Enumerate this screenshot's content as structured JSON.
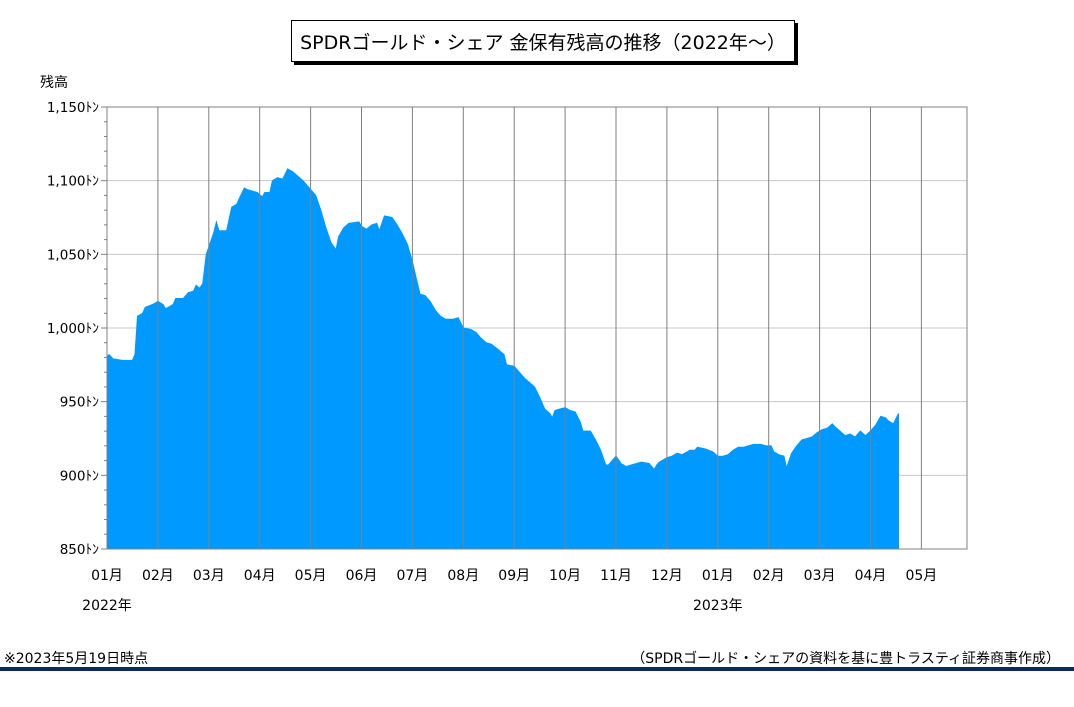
{
  "chart_data": {
    "type": "area",
    "title": "SPDRゴールド・シェア 金保有残高の推移（2022年～）",
    "ylabel": "残高",
    "y_unit": "ﾄﾝ",
    "ylim": [
      850,
      1150
    ],
    "y_ticks": [
      850,
      900,
      950,
      1000,
      1050,
      1100,
      1150
    ],
    "y_tick_labels": [
      "850ﾄﾝ",
      "900ﾄﾝ",
      "950ﾄﾝ",
      "1,000ﾄﾝ",
      "1,050ﾄﾝ",
      "1,100ﾄﾝ",
      "1,150ﾄﾝ"
    ],
    "x_tick_labels": [
      "01月",
      "02月",
      "03月",
      "04月",
      "05月",
      "06月",
      "07月",
      "08月",
      "09月",
      "10月",
      "11月",
      "12月",
      "01月",
      "02月",
      "03月",
      "04月",
      "05月"
    ],
    "year_labels": [
      {
        "label": "2022年",
        "at_month": 0
      },
      {
        "label": "2023年",
        "at_month": 12
      }
    ],
    "grid": true,
    "color": "#0099ff",
    "series": [
      {
        "points": [
          [
            0.0,
            980
          ],
          [
            0.04,
            982
          ],
          [
            0.12,
            979
          ],
          [
            0.3,
            978
          ],
          [
            0.5,
            978
          ],
          [
            0.55,
            982
          ],
          [
            0.6,
            1008
          ],
          [
            0.7,
            1010
          ],
          [
            0.75,
            1014
          ],
          [
            0.9,
            1016
          ],
          [
            1.0,
            1018
          ],
          [
            1.1,
            1016
          ],
          [
            1.15,
            1013
          ],
          [
            1.2,
            1014
          ],
          [
            1.3,
            1016
          ],
          [
            1.35,
            1020
          ],
          [
            1.5,
            1020
          ],
          [
            1.6,
            1024
          ],
          [
            1.7,
            1025
          ],
          [
            1.75,
            1029
          ],
          [
            1.82,
            1027
          ],
          [
            1.88,
            1030
          ],
          [
            1.95,
            1050
          ],
          [
            2.0,
            1055
          ],
          [
            2.1,
            1065
          ],
          [
            2.15,
            1072
          ],
          [
            2.2,
            1066
          ],
          [
            2.35,
            1066
          ],
          [
            2.45,
            1082
          ],
          [
            2.55,
            1084
          ],
          [
            2.6,
            1088
          ],
          [
            2.7,
            1095
          ],
          [
            2.75,
            1094
          ],
          [
            2.85,
            1093
          ],
          [
            2.95,
            1092
          ],
          [
            3.05,
            1089
          ],
          [
            3.1,
            1092
          ],
          [
            3.2,
            1092
          ],
          [
            3.25,
            1100
          ],
          [
            3.35,
            1102
          ],
          [
            3.45,
            1101
          ],
          [
            3.55,
            1108
          ],
          [
            3.65,
            1106
          ],
          [
            3.75,
            1103
          ],
          [
            3.85,
            1100
          ],
          [
            3.95,
            1096
          ],
          [
            4.1,
            1090
          ],
          [
            4.2,
            1080
          ],
          [
            4.3,
            1068
          ],
          [
            4.4,
            1058
          ],
          [
            4.5,
            1053
          ],
          [
            4.55,
            1062
          ],
          [
            4.65,
            1068
          ],
          [
            4.75,
            1071
          ],
          [
            4.95,
            1072
          ],
          [
            5.0,
            1069
          ],
          [
            5.1,
            1067
          ],
          [
            5.2,
            1070
          ],
          [
            5.3,
            1071
          ],
          [
            5.35,
            1066
          ],
          [
            5.45,
            1076
          ],
          [
            5.6,
            1075
          ],
          [
            5.7,
            1070
          ],
          [
            5.8,
            1064
          ],
          [
            5.9,
            1057
          ],
          [
            6.0,
            1045
          ],
          [
            6.15,
            1023
          ],
          [
            6.25,
            1022
          ],
          [
            6.35,
            1018
          ],
          [
            6.45,
            1012
          ],
          [
            6.55,
            1008
          ],
          [
            6.65,
            1006
          ],
          [
            6.8,
            1006
          ],
          [
            6.9,
            1007
          ],
          [
            7.0,
            1000
          ],
          [
            7.15,
            999
          ],
          [
            7.25,
            997
          ],
          [
            7.35,
            993
          ],
          [
            7.45,
            990
          ],
          [
            7.55,
            989
          ],
          [
            7.7,
            985
          ],
          [
            7.8,
            982
          ],
          [
            7.85,
            975
          ],
          [
            8.0,
            974
          ],
          [
            8.1,
            970
          ],
          [
            8.2,
            966
          ],
          [
            8.3,
            963
          ],
          [
            8.4,
            960
          ],
          [
            8.5,
            953
          ],
          [
            8.6,
            945
          ],
          [
            8.7,
            942
          ],
          [
            8.75,
            939
          ],
          [
            8.8,
            944
          ],
          [
            8.9,
            945
          ],
          [
            9.0,
            946
          ],
          [
            9.1,
            944
          ],
          [
            9.2,
            943
          ],
          [
            9.3,
            936
          ],
          [
            9.35,
            930
          ],
          [
            9.5,
            930
          ],
          [
            9.6,
            924
          ],
          [
            9.7,
            917
          ],
          [
            9.8,
            907
          ],
          [
            9.85,
            907
          ],
          [
            9.9,
            909
          ],
          [
            10.0,
            913
          ],
          [
            10.1,
            908
          ],
          [
            10.2,
            906
          ],
          [
            10.3,
            907
          ],
          [
            10.4,
            908
          ],
          [
            10.5,
            909
          ],
          [
            10.65,
            908
          ],
          [
            10.75,
            904
          ],
          [
            10.8,
            907
          ],
          [
            10.85,
            909
          ],
          [
            11.0,
            912
          ],
          [
            11.1,
            913
          ],
          [
            11.2,
            915
          ],
          [
            11.3,
            914
          ],
          [
            11.45,
            917
          ],
          [
            11.55,
            917
          ],
          [
            11.6,
            919
          ],
          [
            11.75,
            918
          ],
          [
            11.9,
            916
          ],
          [
            12.0,
            913
          ],
          [
            12.1,
            913
          ],
          [
            12.2,
            914
          ],
          [
            12.3,
            917
          ],
          [
            12.4,
            919
          ],
          [
            12.5,
            919
          ],
          [
            12.6,
            920
          ],
          [
            12.7,
            921
          ],
          [
            12.85,
            921
          ],
          [
            12.95,
            920
          ],
          [
            13.05,
            920
          ],
          [
            13.1,
            916
          ],
          [
            13.2,
            914
          ],
          [
            13.3,
            913
          ],
          [
            13.35,
            905
          ],
          [
            13.45,
            915
          ],
          [
            13.55,
            920
          ],
          [
            13.65,
            924
          ],
          [
            13.75,
            925
          ],
          [
            13.85,
            926
          ],
          [
            13.95,
            929
          ],
          [
            14.05,
            931
          ],
          [
            14.15,
            932
          ],
          [
            14.25,
            935
          ],
          [
            14.3,
            933
          ],
          [
            14.4,
            930
          ],
          [
            14.5,
            927
          ],
          [
            14.6,
            928
          ],
          [
            14.7,
            926
          ],
          [
            14.8,
            930
          ],
          [
            14.9,
            927
          ],
          [
            15.0,
            930
          ],
          [
            15.1,
            934
          ],
          [
            15.2,
            940
          ],
          [
            15.3,
            939
          ],
          [
            15.35,
            937
          ],
          [
            15.45,
            935
          ],
          [
            15.55,
            942
          ]
        ]
      }
    ]
  },
  "footer": {
    "note": "※2023年5月19日時点",
    "credit": "（SPDRゴールド・シェアの資料を基に豊トラスティ証券商事作成）"
  }
}
